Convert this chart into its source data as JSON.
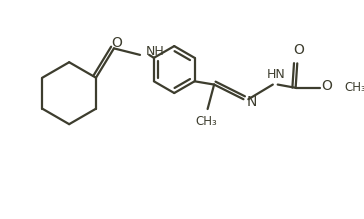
{
  "bg_color": "#ffffff",
  "line_color": "#3d3d2e",
  "line_width": 1.6,
  "font_size": 9,
  "fig_w": 3.64,
  "fig_h": 2.19,
  "dpi": 100,
  "xlim": [
    0,
    10.0
  ],
  "ylim": [
    0,
    6.0
  ]
}
